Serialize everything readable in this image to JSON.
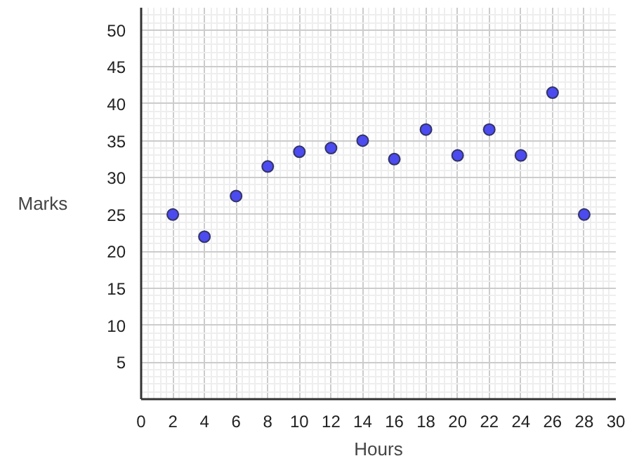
{
  "chart_data": {
    "type": "scatter",
    "xlabel": "Hours",
    "ylabel": "Marks",
    "x": [
      2,
      4,
      6,
      8,
      10,
      12,
      14,
      16,
      18,
      20,
      22,
      24,
      26,
      28
    ],
    "series": [
      {
        "color": "#4b4bf0",
        "values": [
          25,
          22,
          27.5,
          31.5,
          33.5,
          34,
          35,
          32.5,
          36.5,
          33,
          36.5,
          33,
          41.5,
          25
        ]
      }
    ],
    "xlim": [
      0,
      30
    ],
    "ylim": [
      0,
      53
    ],
    "xticks": [
      0,
      2,
      4,
      6,
      8,
      10,
      12,
      14,
      16,
      18,
      20,
      22,
      24,
      26,
      28,
      30
    ],
    "yticks": [
      5,
      10,
      15,
      20,
      25,
      30,
      35,
      40,
      45,
      50
    ],
    "grid": true,
    "marker": "circle"
  }
}
